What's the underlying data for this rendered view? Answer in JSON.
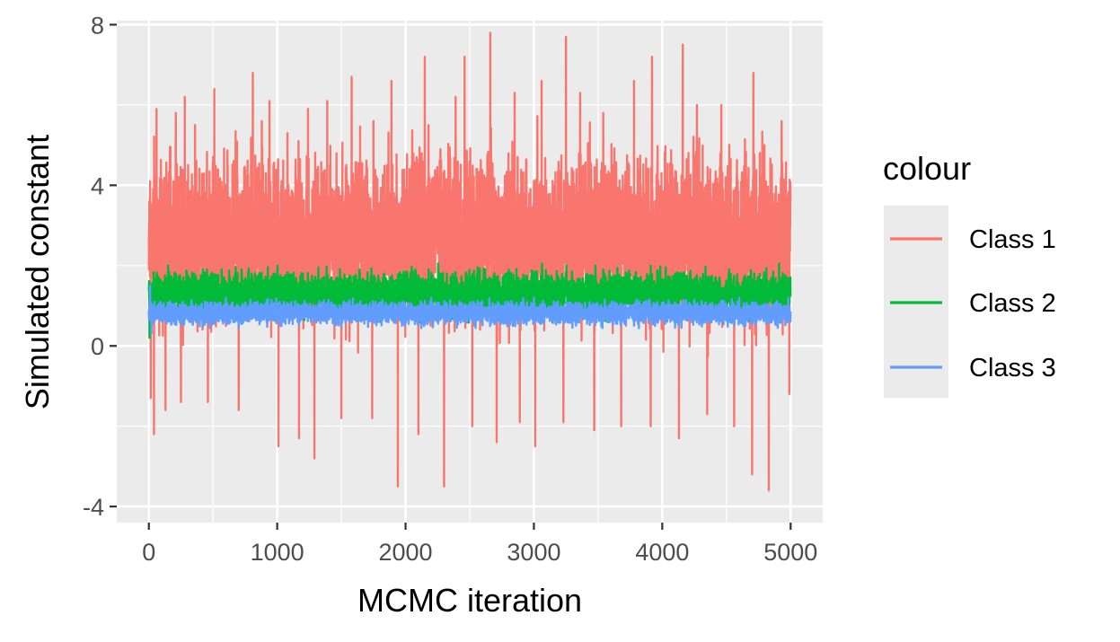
{
  "chart_data": {
    "type": "line",
    "xlabel": "MCMC iteration",
    "ylabel": "Simulated constant",
    "xlim": [
      -250,
      5250
    ],
    "ylim": [
      -4.4,
      8.1
    ],
    "x_ticks": [
      0,
      1000,
      2000,
      3000,
      4000,
      5000
    ],
    "x_tick_labels": [
      "0",
      "1000",
      "2000",
      "3000",
      "4000",
      "5000"
    ],
    "y_ticks": [
      -4,
      0,
      4,
      8
    ],
    "y_tick_labels": [
      "-4",
      "0",
      "4",
      "8"
    ],
    "x_minor_ticks": [
      500,
      1500,
      2500,
      3500,
      4500
    ],
    "y_minor_ticks": [
      -2,
      2,
      6
    ],
    "grid": true,
    "panel_background": "#ebebeb",
    "legend": {
      "title": "colour",
      "position": "right"
    },
    "series": [
      {
        "name": "Class 1",
        "color": "#F8766D",
        "n_iterations": 5000,
        "typical_center": 2.7,
        "typical_range": [
          0.0,
          5.5
        ],
        "x_peaks": [
          10,
          60,
          210,
          280,
          360,
          510,
          810,
          880,
          940,
          1080,
          1240,
          1390,
          1580,
          1750,
          1890,
          2150,
          2390,
          2460,
          2660,
          2850,
          3060,
          3250,
          3360,
          3540,
          3780,
          3920,
          4160,
          4270,
          4460,
          4710,
          4930
        ],
        "y_peaks": [
          4.1,
          5.9,
          5.8,
          6.2,
          5.5,
          6.4,
          6.8,
          5.6,
          6.1,
          5.3,
          5.9,
          6.1,
          6.7,
          5.6,
          6.6,
          7.2,
          6.2,
          7.2,
          7.8,
          6.3,
          6.6,
          7.7,
          6.3,
          5.8,
          6.6,
          7.2,
          7.5,
          6.0,
          6.0,
          6.8,
          5.6
        ],
        "x_troughs": [
          15,
          40,
          130,
          250,
          460,
          700,
          1010,
          1170,
          1290,
          1500,
          1740,
          1940,
          2100,
          2300,
          2520,
          2710,
          2890,
          3010,
          3230,
          3470,
          3680,
          3910,
          4130,
          4350,
          4560,
          4700,
          4830,
          4990
        ],
        "y_troughs": [
          -1.3,
          -2.2,
          -1.6,
          -1.4,
          -1.4,
          -1.6,
          -2.5,
          -2.3,
          -2.8,
          -1.8,
          -1.8,
          -3.5,
          -2.2,
          -3.5,
          -2.0,
          -2.4,
          -1.9,
          -2.5,
          -1.9,
          -2.1,
          -2.0,
          -2.0,
          -2.3,
          -1.7,
          -2.0,
          -3.2,
          -3.6,
          -1.2
        ]
      },
      {
        "name": "Class 2",
        "color": "#00BA38",
        "n_iterations": 5000,
        "typical_center": 1.3,
        "typical_range": [
          0.55,
          2.0
        ],
        "x_peaks": [
          40,
          150,
          420,
          800,
          1200,
          1640,
          2180,
          2620,
          3000,
          3540,
          4100,
          4520,
          4930
        ],
        "y_peaks": [
          1.7,
          2.0,
          1.9,
          1.8,
          1.8,
          1.9,
          1.9,
          1.9,
          1.8,
          1.9,
          1.8,
          1.9,
          1.7
        ],
        "x_troughs": [
          5,
          100,
          500,
          900,
          1400,
          1800,
          2300,
          2700,
          3200,
          3700,
          4200,
          4700
        ],
        "y_troughs": [
          0.2,
          0.7,
          0.6,
          0.7,
          0.7,
          0.6,
          0.7,
          0.7,
          0.7,
          0.7,
          0.7,
          0.7
        ]
      },
      {
        "name": "Class 3",
        "color": "#619CFF",
        "n_iterations": 5000,
        "typical_center": 0.82,
        "typical_range": [
          0.45,
          1.2
        ],
        "x_peaks": [
          10,
          600,
          1400,
          2200,
          3000,
          3800,
          4600
        ],
        "y_peaks": [
          1.5,
          1.2,
          1.15,
          1.2,
          1.2,
          1.15,
          1.2
        ],
        "x_troughs": [
          20,
          700,
          1500,
          2400,
          3300,
          4100,
          4900
        ],
        "y_troughs": [
          0.3,
          0.45,
          0.45,
          0.45,
          0.45,
          0.45,
          0.45
        ]
      }
    ]
  }
}
